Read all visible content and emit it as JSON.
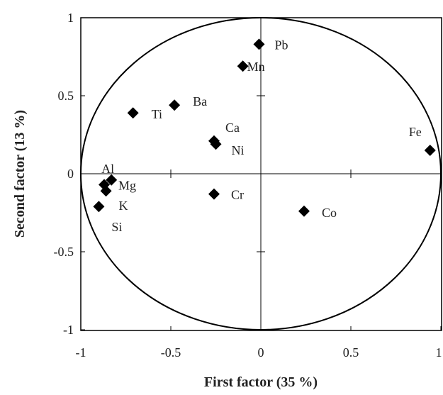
{
  "chart_data": {
    "type": "scatter",
    "xlabel": "First factor (35 %)",
    "ylabel": "Second factor (13 %)",
    "xlim": [
      -1,
      1
    ],
    "ylim": [
      -1,
      1
    ],
    "x_ticks": [
      "-1",
      "-0.5",
      "0",
      "0.5",
      "1"
    ],
    "y_ticks": [
      "1",
      "0.5",
      "0",
      "-0.5",
      "-1"
    ],
    "grid": false,
    "unit_circle": true,
    "marker": "diamond",
    "marker_color": "#000000",
    "points": [
      {
        "label": "Pb",
        "x": -0.01,
        "y": 0.83
      },
      {
        "label": "Mn",
        "x": -0.1,
        "y": 0.69
      },
      {
        "label": "Ba",
        "x": -0.48,
        "y": 0.44
      },
      {
        "label": "Ti",
        "x": -0.71,
        "y": 0.39
      },
      {
        "label": "Ca",
        "x": -0.26,
        "y": 0.21
      },
      {
        "label": "Ni",
        "x": -0.25,
        "y": 0.19
      },
      {
        "label": "Fe",
        "x": 0.94,
        "y": 0.15
      },
      {
        "label": "Al",
        "x": -0.83,
        "y": -0.04
      },
      {
        "label": "Mg",
        "x": -0.87,
        "y": -0.07
      },
      {
        "label": "K",
        "x": -0.86,
        "y": -0.11
      },
      {
        "label": "Si",
        "x": -0.9,
        "y": -0.21
      },
      {
        "label": "Cr",
        "x": -0.26,
        "y": -0.13
      },
      {
        "label": "Co",
        "x": 0.24,
        "y": -0.24
      }
    ]
  }
}
